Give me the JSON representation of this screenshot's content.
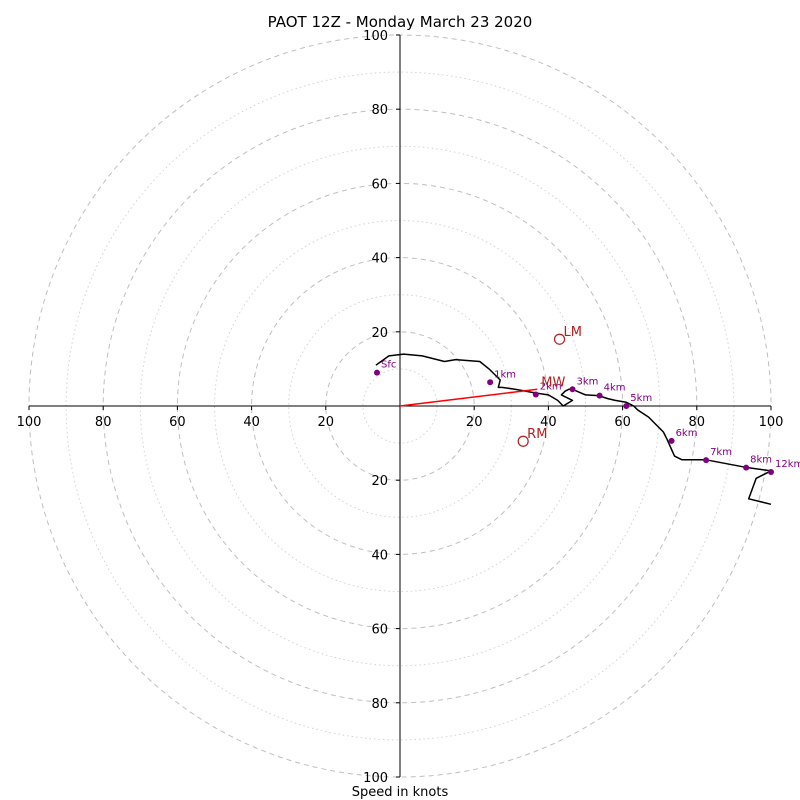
{
  "chart_data": {
    "type": "line",
    "subtype": "hodograph",
    "title": "PAOT 12Z - Monday March 23 2020",
    "xlabel": "Speed in knots",
    "ylabel": "",
    "xlim": [
      -100,
      100
    ],
    "ylim": [
      -100,
      100
    ],
    "major_rings": [
      20,
      40,
      60,
      80,
      100
    ],
    "minor_rings": [
      10,
      30,
      50,
      70,
      90
    ],
    "x_tick_labels": [
      "100",
      "80",
      "60",
      "40",
      "20",
      "20",
      "40",
      "60",
      "80",
      "100"
    ],
    "x_tick_values": [
      -100,
      -80,
      -60,
      -40,
      -20,
      20,
      40,
      60,
      80,
      100
    ],
    "y_tick_labels": [
      "100",
      "80",
      "60",
      "40",
      "20",
      "20",
      "40",
      "60",
      "80",
      "100"
    ],
    "y_tick_values": [
      100,
      80,
      60,
      40,
      20,
      -20,
      -40,
      -60,
      -80,
      -100
    ],
    "grid": true,
    "colors": {
      "profile": "#000000",
      "levels": "#800080",
      "motion": "#b22222",
      "mean_wind_vector": "#ff0000",
      "major_ring": "#bfbfbf",
      "minor_ring": "#d3d3d3"
    },
    "series": [
      {
        "kind": "profile",
        "x": [
          -6.5,
          -3,
          1,
          6,
          12,
          15,
          21.5,
          24,
          27,
          26.5,
          27.5,
          31,
          34,
          36.5,
          40,
          42.5,
          44,
          46.5,
          43.5,
          44.5,
          45.5,
          46.5,
          50,
          53.5,
          56,
          58,
          61,
          63,
          64,
          67,
          71,
          72,
          74,
          76,
          82.5,
          93,
          100,
          96,
          94,
          100,
          100
        ],
        "y": [
          11,
          13.5,
          14,
          13.5,
          12,
          12.5,
          12,
          10,
          7,
          5,
          5,
          4.5,
          4,
          3.5,
          3,
          1.5,
          0,
          1.5,
          3,
          4,
          4.5,
          4.5,
          3,
          2.8,
          2,
          1.5,
          1,
          0,
          -1,
          -3,
          -7,
          -9,
          -13.5,
          -14.5,
          -14.5,
          -16.5,
          -17.5,
          -19.5,
          -25,
          -26.5,
          -26.5
        ]
      }
    ],
    "levels": [
      {
        "label": "Sfc",
        "x": -6.2,
        "y": 9
      },
      {
        "label": "1km",
        "x": 24.3,
        "y": 6.4
      },
      {
        "label": "2km",
        "x": 36.6,
        "y": 3.1
      },
      {
        "label": "3km",
        "x": 46.5,
        "y": 4.5
      },
      {
        "label": "4km",
        "x": 53.8,
        "y": 2.8
      },
      {
        "label": "5km",
        "x": 61.0,
        "y": 0.0
      },
      {
        "label": "6km",
        "x": 73.2,
        "y": -9.4
      },
      {
        "label": "7km",
        "x": 82.5,
        "y": -14.6
      },
      {
        "label": "8km",
        "x": 93.3,
        "y": -16.6
      },
      {
        "label": "12km",
        "x": 100.0,
        "y": -17.8
      }
    ],
    "storm_motions": [
      {
        "label": "LM",
        "x": 43.0,
        "y": 18.0
      },
      {
        "label": "RM",
        "x": 33.2,
        "y": -9.5
      },
      {
        "label": "MW",
        "x": 37.0,
        "y": 4.5
      }
    ],
    "mean_wind_vector": {
      "x": 37.0,
      "y": 4.5
    }
  }
}
